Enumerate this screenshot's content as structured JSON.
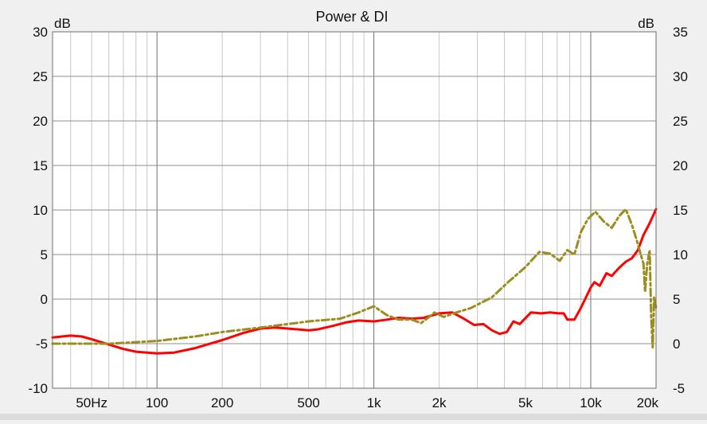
{
  "chart_data": {
    "type": "line",
    "title": "Power & DI",
    "x_scale": "log",
    "x_unit": "Hz",
    "xlim": [
      33,
      20000
    ],
    "x_tick_labels": [
      {
        "value": 50,
        "label": "50Hz"
      },
      {
        "value": 100,
        "label": "100"
      },
      {
        "value": 200,
        "label": "200"
      },
      {
        "value": 500,
        "label": "500"
      },
      {
        "value": 1000,
        "label": "1k"
      },
      {
        "value": 2000,
        "label": "2k"
      },
      {
        "value": 5000,
        "label": "5k"
      },
      {
        "value": 10000,
        "label": "10k"
      },
      {
        "value": 20000,
        "label": "20k"
      }
    ],
    "x_major_grid": [
      100,
      1000,
      10000
    ],
    "x_minor_grid": [
      40,
      50,
      60,
      70,
      80,
      90,
      200,
      300,
      400,
      500,
      600,
      700,
      800,
      900,
      2000,
      3000,
      4000,
      5000,
      6000,
      7000,
      8000,
      9000
    ],
    "y_left": {
      "label": "dB",
      "range": [
        -10,
        30
      ],
      "ticks": [
        30,
        25,
        20,
        15,
        10,
        5,
        0,
        -5,
        -10
      ]
    },
    "y_right": {
      "label": "dB",
      "range": [
        -5,
        35
      ],
      "ticks": [
        35,
        30,
        25,
        20,
        15,
        10,
        5,
        0,
        -5
      ]
    },
    "grid": true,
    "series": [
      {
        "color": "#ff0000",
        "style": "solid",
        "axis": "left",
        "points": [
          [
            33,
            -4.3
          ],
          [
            40,
            -4.1
          ],
          [
            45,
            -4.2
          ],
          [
            50,
            -4.5
          ],
          [
            60,
            -5.1
          ],
          [
            70,
            -5.6
          ],
          [
            80,
            -5.9
          ],
          [
            100,
            -6.1
          ],
          [
            120,
            -6.0
          ],
          [
            150,
            -5.5
          ],
          [
            200,
            -4.6
          ],
          [
            250,
            -3.8
          ],
          [
            300,
            -3.3
          ],
          [
            350,
            -3.2
          ],
          [
            400,
            -3.3
          ],
          [
            500,
            -3.5
          ],
          [
            550,
            -3.4
          ],
          [
            650,
            -3.0
          ],
          [
            750,
            -2.6
          ],
          [
            850,
            -2.4
          ],
          [
            1000,
            -2.5
          ],
          [
            1150,
            -2.3
          ],
          [
            1300,
            -2.1
          ],
          [
            1500,
            -2.2
          ],
          [
            1700,
            -2.1
          ],
          [
            2000,
            -1.6
          ],
          [
            2300,
            -1.5
          ],
          [
            2600,
            -2.2
          ],
          [
            2900,
            -2.9
          ],
          [
            3200,
            -2.8
          ],
          [
            3500,
            -3.5
          ],
          [
            3800,
            -3.9
          ],
          [
            4100,
            -3.7
          ],
          [
            4400,
            -2.5
          ],
          [
            4700,
            -2.8
          ],
          [
            5300,
            -1.5
          ],
          [
            5900,
            -1.6
          ],
          [
            6500,
            -1.5
          ],
          [
            7100,
            -1.6
          ],
          [
            7500,
            -1.6
          ],
          [
            7800,
            -2.3
          ],
          [
            8400,
            -2.3
          ],
          [
            9000,
            -1.0
          ],
          [
            10000,
            1.3
          ],
          [
            10400,
            1.9
          ],
          [
            11000,
            1.5
          ],
          [
            11800,
            2.9
          ],
          [
            12500,
            2.6
          ],
          [
            13500,
            3.5
          ],
          [
            14500,
            4.2
          ],
          [
            15500,
            4.6
          ],
          [
            16500,
            5.5
          ],
          [
            17500,
            7.2
          ],
          [
            18500,
            8.3
          ],
          [
            19500,
            9.5
          ],
          [
            20000,
            10.1
          ]
        ]
      },
      {
        "color": "#9b8d1e",
        "style": "dash-dot",
        "axis": "right",
        "points": [
          [
            33,
            0.0
          ],
          [
            60,
            0.0
          ],
          [
            100,
            0.3
          ],
          [
            150,
            0.8
          ],
          [
            200,
            1.3
          ],
          [
            300,
            1.8
          ],
          [
            500,
            2.5
          ],
          [
            700,
            2.8
          ],
          [
            850,
            3.5
          ],
          [
            1000,
            4.2
          ],
          [
            1150,
            3.2
          ],
          [
            1300,
            2.7
          ],
          [
            1500,
            2.7
          ],
          [
            1650,
            2.3
          ],
          [
            1800,
            3.0
          ],
          [
            1900,
            3.5
          ],
          [
            2100,
            3.0
          ],
          [
            2400,
            3.5
          ],
          [
            2800,
            4.0
          ],
          [
            3500,
            5.2
          ],
          [
            4200,
            7.0
          ],
          [
            5000,
            8.6
          ],
          [
            5800,
            10.3
          ],
          [
            6500,
            10.1
          ],
          [
            7200,
            9.3
          ],
          [
            7800,
            10.5
          ],
          [
            8400,
            10.0
          ],
          [
            9000,
            12.5
          ],
          [
            9700,
            14.0
          ],
          [
            10500,
            14.8
          ],
          [
            11500,
            13.7
          ],
          [
            12500,
            13.0
          ],
          [
            13500,
            14.3
          ],
          [
            14500,
            15.1
          ],
          [
            15500,
            13.3
          ],
          [
            16300,
            11.6
          ],
          [
            17000,
            10.0
          ],
          [
            17500,
            9.0
          ],
          [
            17800,
            5.8
          ],
          [
            18200,
            8.9
          ],
          [
            18700,
            10.5
          ],
          [
            19000,
            3.0
          ],
          [
            19300,
            -0.4
          ],
          [
            19600,
            5.2
          ],
          [
            20000,
            4.0
          ]
        ]
      }
    ]
  }
}
